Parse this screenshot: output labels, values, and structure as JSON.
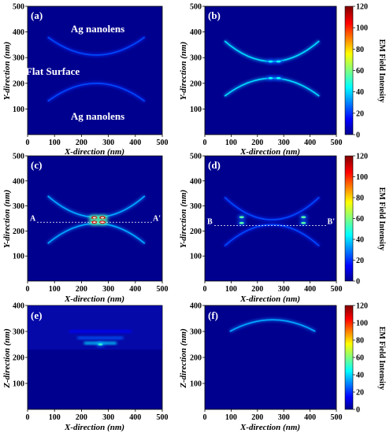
{
  "chart_data": [
    {
      "type": "heatmap",
      "panel_label": "(a)",
      "xlabel": "X-direction (nm)",
      "ylabel": "Y-direction (nm)",
      "xlim": [
        0,
        500
      ],
      "ylim": [
        0,
        500
      ],
      "xticks": [
        0,
        100,
        200,
        300,
        400,
        500
      ],
      "yticks": [
        100,
        200,
        300,
        400,
        500
      ],
      "annotations": [
        "Ag nanolens",
        "Flat Surface",
        "Ag nanolens"
      ],
      "arcs": [
        {
          "orient": "down",
          "x0": 75,
          "x1": 435,
          "y_center": 310,
          "y_edge": 380,
          "intensity": 20
        },
        {
          "orient": "up",
          "x0": 75,
          "x1": 435,
          "y_center": 200,
          "y_edge": 130,
          "intensity": 20
        }
      ],
      "hotspots": []
    },
    {
      "type": "heatmap",
      "panel_label": "(b)",
      "xlabel": "X-direction (nm)",
      "ylabel": "Y-direction (nm)",
      "xlim": [
        0,
        500
      ],
      "ylim": [
        0,
        500
      ],
      "xticks": [
        0,
        100,
        200,
        300,
        400,
        500
      ],
      "yticks": [
        100,
        200,
        300,
        400,
        500
      ],
      "annotations": [],
      "arcs": [
        {
          "orient": "down",
          "x0": 75,
          "x1": 435,
          "y_center": 285,
          "y_edge": 365,
          "intensity": 35
        },
        {
          "orient": "up",
          "x0": 75,
          "x1": 435,
          "y_center": 220,
          "y_edge": 150,
          "intensity": 35
        }
      ],
      "hotspots": [
        {
          "x": 250,
          "y": 285,
          "intensity": 45
        },
        {
          "x": 280,
          "y": 285,
          "intensity": 45
        },
        {
          "x": 250,
          "y": 220,
          "intensity": 45
        },
        {
          "x": 280,
          "y": 220,
          "intensity": 45
        }
      ]
    },
    {
      "type": "heatmap",
      "panel_label": "(c)",
      "xlabel": "X-direction (nm)",
      "ylabel": "Y-direction (nm)",
      "xlim": [
        0,
        500
      ],
      "ylim": [
        0,
        500
      ],
      "xticks": [
        0,
        100,
        200,
        300,
        400,
        500
      ],
      "yticks": [
        100,
        200,
        300,
        400,
        500
      ],
      "annotations": [],
      "cut_line": {
        "y": 235,
        "left_label": "A",
        "right_label": "A'"
      },
      "arcs": [
        {
          "orient": "down",
          "x0": 75,
          "x1": 435,
          "y_center": 255,
          "y_edge": 340,
          "intensity": 30
        },
        {
          "orient": "up",
          "x0": 75,
          "x1": 435,
          "y_center": 230,
          "y_edge": 150,
          "intensity": 30
        }
      ],
      "hotspots": [
        {
          "x": 248,
          "y": 253,
          "intensity": 110
        },
        {
          "x": 278,
          "y": 253,
          "intensity": 110
        },
        {
          "x": 248,
          "y": 235,
          "intensity": 110
        },
        {
          "x": 278,
          "y": 235,
          "intensity": 110
        }
      ]
    },
    {
      "type": "heatmap",
      "panel_label": "(d)",
      "xlabel": "X-direction (nm)",
      "ylabel": "Y-direction (nm)",
      "xlim": [
        0,
        500
      ],
      "ylim": [
        0,
        500
      ],
      "xticks": [
        0,
        100,
        200,
        300,
        400,
        500
      ],
      "yticks": [
        100,
        200,
        300,
        400,
        500
      ],
      "annotations": [],
      "cut_line": {
        "y": 222,
        "left_label": "B",
        "right_label": "B'"
      },
      "arcs": [
        {
          "orient": "down",
          "x0": 75,
          "x1": 435,
          "y_center": 245,
          "y_edge": 335,
          "intensity": 20
        },
        {
          "orient": "up",
          "x0": 75,
          "x1": 435,
          "y_center": 225,
          "y_edge": 140,
          "intensity": 20
        }
      ],
      "hotspots": [
        {
          "x": 140,
          "y": 255,
          "intensity": 55
        },
        {
          "x": 375,
          "y": 255,
          "intensity": 55
        },
        {
          "x": 140,
          "y": 232,
          "intensity": 55
        },
        {
          "x": 375,
          "y": 232,
          "intensity": 55
        }
      ]
    },
    {
      "type": "heatmap",
      "panel_label": "(e)",
      "xlabel": "X-direction (nm)",
      "ylabel": "Z-direction (nm)",
      "xlim": [
        0,
        500
      ],
      "ylim": [
        0,
        400
      ],
      "xticks": [
        0,
        100,
        200,
        300,
        400,
        500
      ],
      "yticks": [
        100,
        200,
        300,
        400
      ],
      "annotations": [],
      "arcs": [],
      "hotspots": [
        {
          "x": 270,
          "y": 250,
          "intensity": 55
        }
      ]
    },
    {
      "type": "heatmap",
      "panel_label": "(f)",
      "xlabel": "X-direction (nm)",
      "ylabel": "Z-direction (nm)",
      "xlim": [
        0,
        500
      ],
      "ylim": [
        0,
        400
      ],
      "xticks": [
        0,
        100,
        200,
        300,
        400,
        500
      ],
      "yticks": [
        100,
        200,
        300,
        400
      ],
      "annotations": [],
      "arcs": [
        {
          "orient": "down",
          "x0": 95,
          "x1": 420,
          "y_center": 345,
          "y_edge": 300,
          "intensity": 30
        }
      ],
      "hotspots": []
    }
  ],
  "colorbar": {
    "label": "EM Field Intensity",
    "range": [
      0,
      120
    ],
    "ticks": [
      0,
      20,
      40,
      60,
      80,
      100,
      120
    ],
    "colors": [
      "#00008f",
      "#0000ff",
      "#00ffff",
      "#7fff7f",
      "#ffff00",
      "#ff0000",
      "#800000"
    ]
  }
}
